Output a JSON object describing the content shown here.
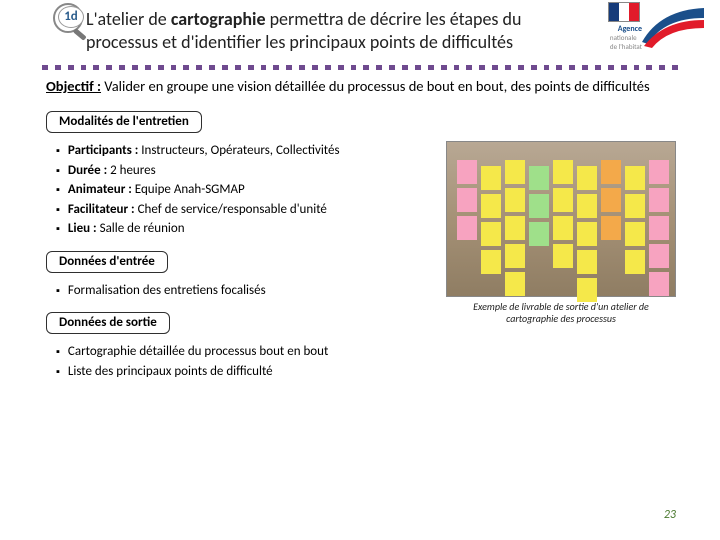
{
  "header": {
    "badge": "1d",
    "title_pre": "L'atelier de ",
    "title_bold": "cartographie",
    "title_post": " permettra de décrire les étapes du processus et d'identifier les principaux points de difficultés",
    "logo": {
      "agence": "Agence",
      "sub1": "nationale",
      "sub2": "de l'habitat",
      "flag_colors": [
        "#163b7a",
        "#ffffff",
        "#e11b2a"
      ],
      "swoosh_colors": [
        "#1b4f8a",
        "#e11b2a"
      ]
    }
  },
  "dot_color": "#6f4a8f",
  "objectif": {
    "label": "Objectif :",
    "text": " Valider en groupe une vision détaillée du processus de bout en bout, des points de difficultés"
  },
  "sections": {
    "modalites": {
      "label": "Modalités de l'entretien",
      "items": [
        {
          "k": "Participants :",
          "v": " Instructeurs, Opérateurs, Collectivités"
        },
        {
          "k": "Durée :",
          "v": " 2 heures"
        },
        {
          "k": "Animateur :",
          "v": " Equipe Anah-SGMAP"
        },
        {
          "k": "Facilitateur :",
          "v": " Chef de service/responsable d'unité"
        },
        {
          "k": "Lieu :",
          "v": " Salle de réunion"
        }
      ]
    },
    "entree": {
      "label": "Données d'entrée",
      "items": [
        {
          "v": "Formalisation des entretiens focalisés"
        }
      ]
    },
    "sortie": {
      "label": "Données de sortie",
      "items": [
        {
          "v": "Cartographie détaillée du processus bout en bout"
        },
        {
          "v": "Liste des principaux points de difficulté"
        }
      ]
    }
  },
  "figure": {
    "caption": "Exemple de livrable de sortie d'un atelier de cartographie des processus",
    "bg_colors": [
      "#b8a894",
      "#a59176",
      "#8f7d63"
    ],
    "note_colors": {
      "yellow": "#f5e84a",
      "pink": "#f7a3c0",
      "green": "#9fe08a",
      "orange": "#f3a94a"
    }
  },
  "page_number": "23"
}
